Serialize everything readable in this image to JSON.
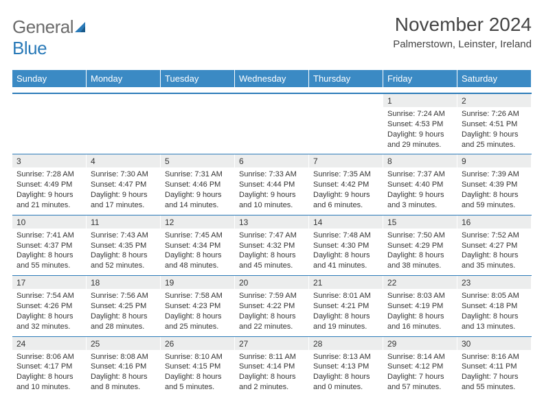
{
  "logo": {
    "word1": "General",
    "word2": "Blue"
  },
  "header": {
    "month_title": "November 2024",
    "location": "Palmerstown, Leinster, Ireland"
  },
  "days_of_week": [
    "Sunday",
    "Monday",
    "Tuesday",
    "Wednesday",
    "Thursday",
    "Friday",
    "Saturday"
  ],
  "calendar": {
    "type": "table",
    "header_bg": "#3b8ac4",
    "header_fg": "#ffffff",
    "daynum_bg": "#eceded",
    "separator_color": "#2a7ab8",
    "text_color": "#333333",
    "fontsize_header": 13,
    "fontsize_daynum": 12,
    "fontsize_body": 11,
    "columns": 7,
    "leading_blanks": 5
  },
  "days": [
    {
      "n": "1",
      "sunrise": "7:24 AM",
      "sunset": "4:53 PM",
      "daylight": "9 hours and 29 minutes."
    },
    {
      "n": "2",
      "sunrise": "7:26 AM",
      "sunset": "4:51 PM",
      "daylight": "9 hours and 25 minutes."
    },
    {
      "n": "3",
      "sunrise": "7:28 AM",
      "sunset": "4:49 PM",
      "daylight": "9 hours and 21 minutes."
    },
    {
      "n": "4",
      "sunrise": "7:30 AM",
      "sunset": "4:47 PM",
      "daylight": "9 hours and 17 minutes."
    },
    {
      "n": "5",
      "sunrise": "7:31 AM",
      "sunset": "4:46 PM",
      "daylight": "9 hours and 14 minutes."
    },
    {
      "n": "6",
      "sunrise": "7:33 AM",
      "sunset": "4:44 PM",
      "daylight": "9 hours and 10 minutes."
    },
    {
      "n": "7",
      "sunrise": "7:35 AM",
      "sunset": "4:42 PM",
      "daylight": "9 hours and 6 minutes."
    },
    {
      "n": "8",
      "sunrise": "7:37 AM",
      "sunset": "4:40 PM",
      "daylight": "9 hours and 3 minutes."
    },
    {
      "n": "9",
      "sunrise": "7:39 AM",
      "sunset": "4:39 PM",
      "daylight": "8 hours and 59 minutes."
    },
    {
      "n": "10",
      "sunrise": "7:41 AM",
      "sunset": "4:37 PM",
      "daylight": "8 hours and 55 minutes."
    },
    {
      "n": "11",
      "sunrise": "7:43 AM",
      "sunset": "4:35 PM",
      "daylight": "8 hours and 52 minutes."
    },
    {
      "n": "12",
      "sunrise": "7:45 AM",
      "sunset": "4:34 PM",
      "daylight": "8 hours and 48 minutes."
    },
    {
      "n": "13",
      "sunrise": "7:47 AM",
      "sunset": "4:32 PM",
      "daylight": "8 hours and 45 minutes."
    },
    {
      "n": "14",
      "sunrise": "7:48 AM",
      "sunset": "4:30 PM",
      "daylight": "8 hours and 41 minutes."
    },
    {
      "n": "15",
      "sunrise": "7:50 AM",
      "sunset": "4:29 PM",
      "daylight": "8 hours and 38 minutes."
    },
    {
      "n": "16",
      "sunrise": "7:52 AM",
      "sunset": "4:27 PM",
      "daylight": "8 hours and 35 minutes."
    },
    {
      "n": "17",
      "sunrise": "7:54 AM",
      "sunset": "4:26 PM",
      "daylight": "8 hours and 32 minutes."
    },
    {
      "n": "18",
      "sunrise": "7:56 AM",
      "sunset": "4:25 PM",
      "daylight": "8 hours and 28 minutes."
    },
    {
      "n": "19",
      "sunrise": "7:58 AM",
      "sunset": "4:23 PM",
      "daylight": "8 hours and 25 minutes."
    },
    {
      "n": "20",
      "sunrise": "7:59 AM",
      "sunset": "4:22 PM",
      "daylight": "8 hours and 22 minutes."
    },
    {
      "n": "21",
      "sunrise": "8:01 AM",
      "sunset": "4:21 PM",
      "daylight": "8 hours and 19 minutes."
    },
    {
      "n": "22",
      "sunrise": "8:03 AM",
      "sunset": "4:19 PM",
      "daylight": "8 hours and 16 minutes."
    },
    {
      "n": "23",
      "sunrise": "8:05 AM",
      "sunset": "4:18 PM",
      "daylight": "8 hours and 13 minutes."
    },
    {
      "n": "24",
      "sunrise": "8:06 AM",
      "sunset": "4:17 PM",
      "daylight": "8 hours and 10 minutes."
    },
    {
      "n": "25",
      "sunrise": "8:08 AM",
      "sunset": "4:16 PM",
      "daylight": "8 hours and 8 minutes."
    },
    {
      "n": "26",
      "sunrise": "8:10 AM",
      "sunset": "4:15 PM",
      "daylight": "8 hours and 5 minutes."
    },
    {
      "n": "27",
      "sunrise": "8:11 AM",
      "sunset": "4:14 PM",
      "daylight": "8 hours and 2 minutes."
    },
    {
      "n": "28",
      "sunrise": "8:13 AM",
      "sunset": "4:13 PM",
      "daylight": "8 hours and 0 minutes."
    },
    {
      "n": "29",
      "sunrise": "8:14 AM",
      "sunset": "4:12 PM",
      "daylight": "7 hours and 57 minutes."
    },
    {
      "n": "30",
      "sunrise": "8:16 AM",
      "sunset": "4:11 PM",
      "daylight": "7 hours and 55 minutes."
    }
  ]
}
